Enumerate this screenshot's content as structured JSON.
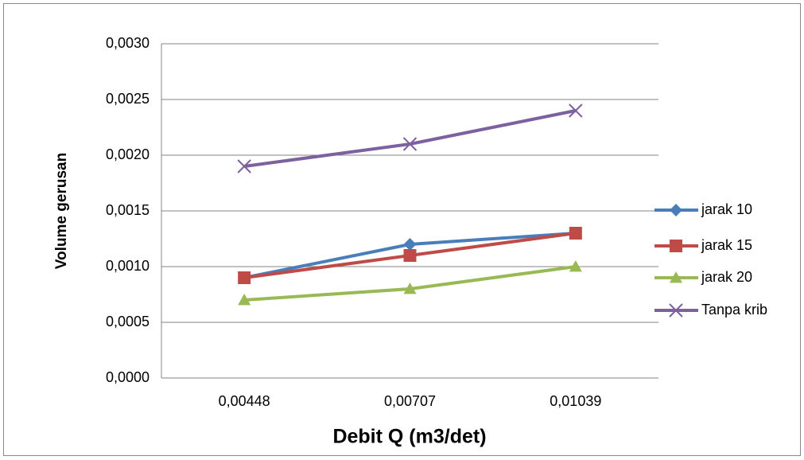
{
  "chart_data": {
    "type": "line",
    "x_label": "Debit Q (m3/det)",
    "y_label": "Volume gerusan",
    "categories": [
      "0,00448",
      "0,00707",
      "0,01039"
    ],
    "series": [
      {
        "name": "jarak 10",
        "color": "#4a7ebb",
        "marker": "diamond",
        "values": [
          0.0009,
          0.0012,
          0.0013
        ]
      },
      {
        "name": "jarak 15",
        "color": "#be4b48",
        "marker": "square",
        "values": [
          0.0009,
          0.0011,
          0.0013
        ]
      },
      {
        "name": "jarak 20",
        "color": "#98b954",
        "marker": "triangle",
        "values": [
          0.0007,
          0.0008,
          0.001
        ]
      },
      {
        "name": "Tanpa krib",
        "color": "#7d60a0",
        "marker": "x",
        "values": [
          0.0019,
          0.0021,
          0.0024
        ]
      }
    ],
    "ylim": [
      0,
      0.003
    ],
    "yticks": [
      {
        "value": 0,
        "label": "0,0000"
      },
      {
        "value": 0.0005,
        "label": "0,0005"
      },
      {
        "value": 0.001,
        "label": "0,0010"
      },
      {
        "value": 0.0015,
        "label": "0,0015"
      },
      {
        "value": 0.002,
        "label": "0,0020"
      },
      {
        "value": 0.0025,
        "label": "0,0025"
      },
      {
        "value": 0.003,
        "label": "0,0030"
      }
    ],
    "grid": true,
    "legend": "right"
  }
}
